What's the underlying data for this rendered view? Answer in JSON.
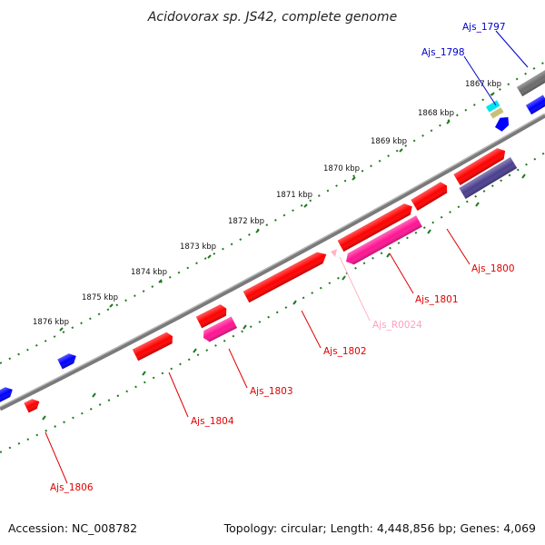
{
  "title": "Acidovorax sp. JS42, complete genome",
  "footer": {
    "accession": "Accession: NC_008782",
    "summary": "Topology: circular; Length: 4,448,856 bp; Genes: 4,069"
  },
  "colors": {
    "backbone": "#808080",
    "tick": "#1f7a1f",
    "cds_red": "#ff0000",
    "cds_pink": "#ff1493",
    "cds_blue": "#0000ff",
    "cds_navy": "#4b3f8f",
    "cds_gray": "#6b6b6b",
    "cds_cyan": "#00e5ee",
    "cds_tan": "#c8c07a",
    "ncrna_lightpink": "#ffb6c1",
    "label_red": "#e00000",
    "label_blue": "#0000cc",
    "label_lightpink": "#ff9fc0"
  },
  "kbp_labels": [
    "1867 kbp",
    "1868 kbp",
    "1869 kbp",
    "1870 kbp",
    "1871 kbp",
    "1872 kbp",
    "1873 kbp",
    "1874 kbp",
    "1875 kbp",
    "1876 kbp"
  ],
  "gene_labels": [
    {
      "id": "Ajs_1797",
      "color": "label_blue"
    },
    {
      "id": "Ajs_1798",
      "color": "label_blue"
    },
    {
      "id": "Ajs_1800",
      "color": "label_red"
    },
    {
      "id": "Ajs_1801",
      "color": "label_red"
    },
    {
      "id": "Ajs_R0024",
      "color": "label_lightpink"
    },
    {
      "id": "Ajs_1802",
      "color": "label_red"
    },
    {
      "id": "Ajs_1803",
      "color": "label_red"
    },
    {
      "id": "Ajs_1804",
      "color": "label_red"
    },
    {
      "id": "Ajs_1806",
      "color": "label_red"
    }
  ]
}
